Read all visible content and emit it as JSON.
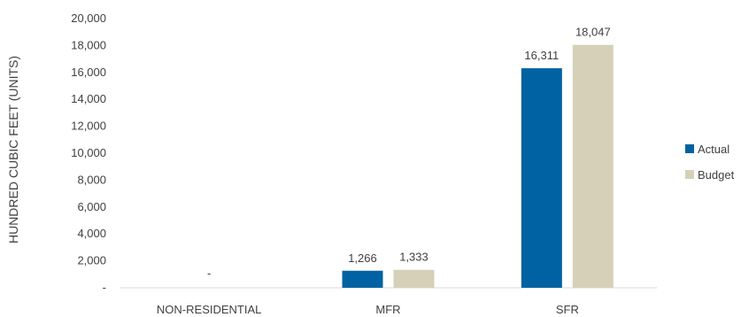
{
  "chart_data": {
    "type": "bar",
    "ylabel": "HUNDRED CUBIC FEET (UNITS)",
    "xlabel": "",
    "categories": [
      "NON-RESIDENTIAL",
      "MFR",
      "SFR"
    ],
    "series": [
      {
        "name": "Actual",
        "color": "#0062a2",
        "values": [
          0,
          1266,
          16311
        ]
      },
      {
        "name": "Budget",
        "color": "#d6d0b8",
        "values": [
          0,
          1333,
          18047
        ]
      }
    ],
    "data_labels": [
      [
        "",
        "1,266",
        "16,311"
      ],
      [
        "-",
        "1,333",
        "18,047"
      ]
    ],
    "ylim": [
      0,
      20000
    ],
    "yticks": [
      0,
      2000,
      4000,
      6000,
      8000,
      10000,
      12000,
      14000,
      16000,
      18000,
      20000
    ],
    "ytick_labels": [
      "-",
      "2,000",
      "4,000",
      "6,000",
      "8,000",
      "10,000",
      "12,000",
      "14,000",
      "16,000",
      "18,000",
      "20,000"
    ],
    "legend_position": "right",
    "grid": false
  }
}
